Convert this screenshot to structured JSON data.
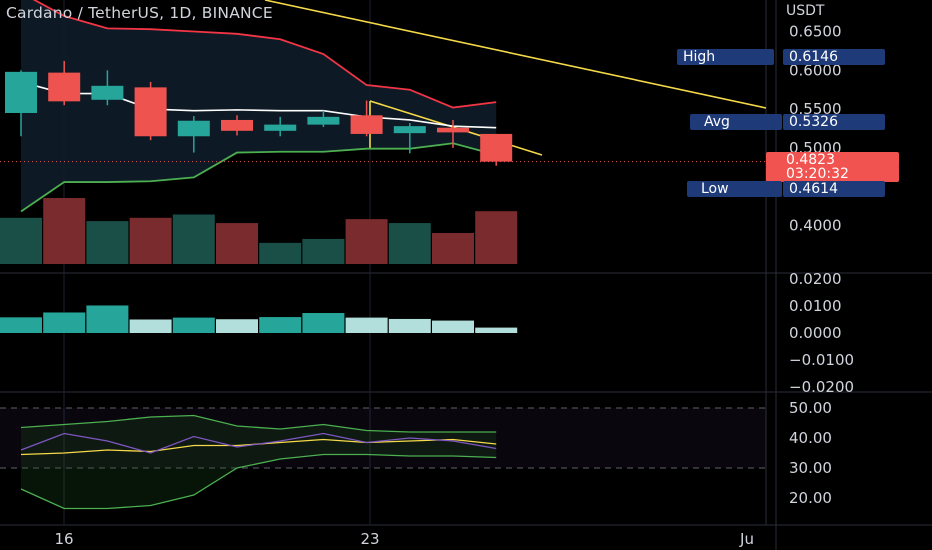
{
  "header": {
    "title": "Cardano / TetherUS, 1D, BINANCE",
    "currency": "USDT"
  },
  "markers": {
    "high": {
      "label": "High",
      "value": "0.6146"
    },
    "avg": {
      "label": "Avg",
      "value": "0.5326"
    },
    "low": {
      "label": "Low",
      "value": "0.4614"
    },
    "last": {
      "value": "0.4823",
      "countdown": "03:20:32"
    }
  },
  "colors": {
    "up": "#26a69a",
    "down": "#ef5350",
    "bb_upper": "#f23645",
    "bb_lower": "#4caf50",
    "trend": "#f5d94a",
    "ma": "#ffffff"
  },
  "chart_data": [
    {
      "type": "candlestick",
      "title": "Cardano / TetherUS, 1D, BINANCE",
      "x_tick_labels": [
        "16",
        "23",
        "Ju"
      ],
      "y_tick_labels": [
        "0.6500",
        "0.6000",
        "0.5500",
        "0.5000",
        "0.4000"
      ],
      "ylim": [
        0.37,
        0.69
      ],
      "candles": [
        {
          "o": 0.545,
          "h": 0.6,
          "l": 0.515,
          "c": 0.598
        },
        {
          "o": 0.597,
          "h": 0.612,
          "l": 0.555,
          "c": 0.56
        },
        {
          "o": 0.562,
          "h": 0.6,
          "l": 0.555,
          "c": 0.58
        },
        {
          "o": 0.578,
          "h": 0.585,
          "l": 0.51,
          "c": 0.515
        },
        {
          "o": 0.515,
          "h": 0.541,
          "l": 0.494,
          "c": 0.535
        },
        {
          "o": 0.536,
          "h": 0.542,
          "l": 0.516,
          "c": 0.522
        },
        {
          "o": 0.522,
          "h": 0.54,
          "l": 0.515,
          "c": 0.53
        },
        {
          "o": 0.53,
          "h": 0.548,
          "l": 0.527,
          "c": 0.54
        },
        {
          "o": 0.542,
          "h": 0.561,
          "l": 0.515,
          "c": 0.518
        },
        {
          "o": 0.519,
          "h": 0.532,
          "l": 0.493,
          "c": 0.528
        },
        {
          "o": 0.526,
          "h": 0.536,
          "l": 0.5,
          "c": 0.52
        },
        {
          "o": 0.518,
          "h": 0.518,
          "l": 0.477,
          "c": 0.4823
        }
      ],
      "bb_upper": [
        0.7,
        0.67,
        0.654,
        0.653,
        0.65,
        0.647,
        0.64,
        0.621,
        0.581,
        0.575,
        0.552,
        0.559
      ],
      "bb_basis": [
        0.585,
        0.57,
        0.57,
        0.55,
        0.548,
        0.549,
        0.548,
        0.548,
        0.54,
        0.536,
        0.528,
        0.526
      ],
      "bb_lower": [
        0.418,
        0.456,
        0.456,
        0.457,
        0.462,
        0.494,
        0.495,
        0.495,
        0.499,
        0.499,
        0.506,
        0.491
      ],
      "volume": [
        0.7,
        1.0,
        0.65,
        0.7,
        0.75,
        0.62,
        0.32,
        0.38,
        0.68,
        0.62,
        0.47,
        0.8
      ]
    },
    {
      "type": "bar",
      "name": "oscillator",
      "y_tick_labels": [
        "0.0200",
        "0.0100",
        "0.0000",
        "−0.0100",
        "−0.0200"
      ],
      "ylim": [
        -0.02,
        0.02
      ],
      "values": [
        0.0058,
        0.0076,
        0.0102,
        0.005,
        0.0057,
        0.0051,
        0.0059,
        0.0074,
        0.0057,
        0.0052,
        0.0046,
        0.002
      ]
    },
    {
      "type": "line",
      "name": "rsi",
      "y_tick_labels": [
        "50.00",
        "40.00",
        "30.00",
        "20.00"
      ],
      "ylim": [
        15,
        52
      ],
      "rsi": [
        36.0,
        41.5,
        39.0,
        35.0,
        40.5,
        37.0,
        39.0,
        41.5,
        38.5,
        40.0,
        39.0,
        36.5
      ],
      "rsi_ma": [
        34.5,
        35.0,
        36.0,
        35.5,
        37.5,
        37.5,
        38.5,
        39.5,
        38.5,
        39.0,
        39.5,
        38.0
      ],
      "band_upper": [
        43.5,
        44.5,
        45.5,
        47.0,
        47.5,
        44.0,
        43.0,
        44.5,
        42.5,
        42.0,
        42.0,
        42.0
      ],
      "band_lower": [
        23.0,
        16.5,
        16.5,
        17.5,
        21.0,
        30.0,
        33.0,
        34.5,
        34.5,
        34.0,
        34.0,
        33.5
      ]
    }
  ]
}
